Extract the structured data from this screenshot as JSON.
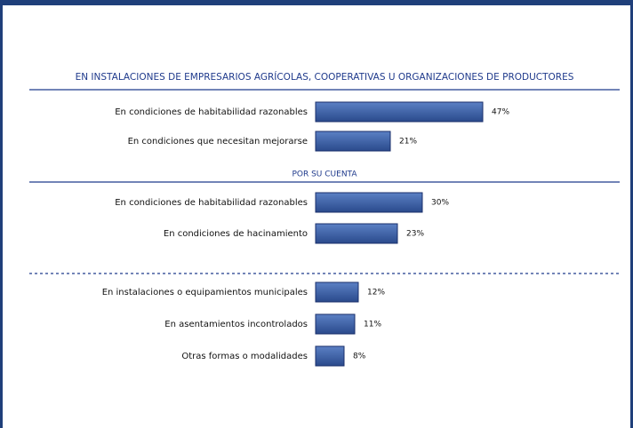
{
  "chart_data": {
    "type": "bar",
    "title": "EN INSTALACIONES DE EMPRESARIOS AGRÍCOLAS, COOPERATIVAS U ORGANIZACIONES DE PRODUCTORES",
    "annotations": [
      "POR SU CUENTA"
    ],
    "categories": [
      "En condiciones de habitabilidad razonables",
      "En condiciones que necesitan mejorarse",
      "En condiciones de habitabilidad razonables",
      "En condiciones de hacinamiento",
      "En instalaciones o equipamientos municipales",
      "En asentamientos incontrolados",
      "Otras formas o modalidades"
    ],
    "values": [
      47,
      21,
      30,
      23,
      12,
      11,
      8
    ],
    "value_labels": [
      "47%",
      "21%",
      "30%",
      "23%",
      "12%",
      "11%",
      "8%"
    ],
    "xlim": [
      0,
      100
    ],
    "color": "#3a5fa8"
  }
}
